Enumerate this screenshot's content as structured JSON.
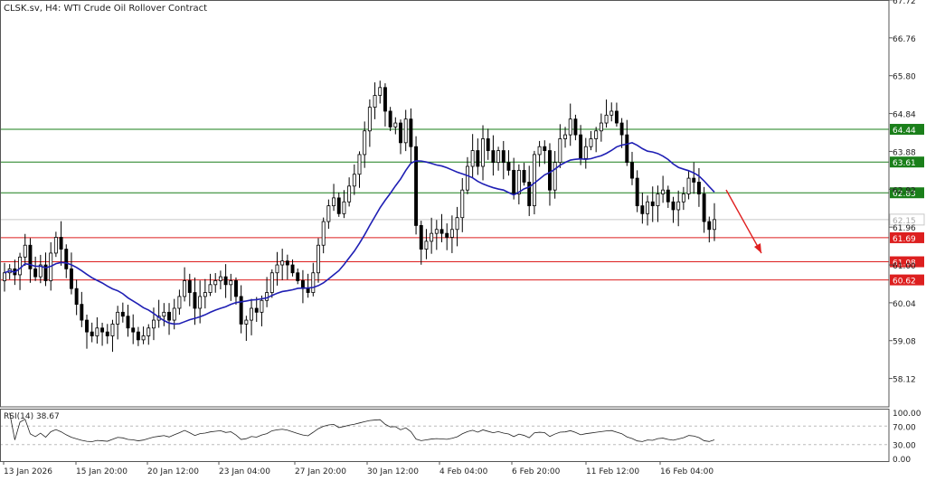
{
  "header": {
    "title": "CLSK.sv, H4:  WTI Crude Oil Rollover Contract"
  },
  "chart_data": {
    "type": "candlestick",
    "symbol": "CLSK.sv",
    "timeframe": "H4",
    "instrument": "WTI Crude Oil Rollover Contract",
    "ylim": [
      57.4,
      67.72
    ],
    "y_ticks": [
      "67.72",
      "66.76",
      "65.80",
      "64.84",
      "63.88",
      "62.92",
      "61.96",
      "61.00",
      "60.04",
      "59.08",
      "58.12"
    ],
    "x_ticks": [
      "13 Jan 2026",
      "15 Jan 20:00",
      "20 Jan 12:00",
      "23 Jan 04:00",
      "27 Jan 20:00",
      "30 Jan 12:00",
      "4 Feb 04:00",
      "6 Feb 20:00",
      "11 Feb 12:00",
      "16 Feb 04:00"
    ],
    "horizontal_levels": [
      {
        "label": "64.44",
        "value": 64.44,
        "color": "#1a7f1a"
      },
      {
        "label": "63.61",
        "value": 63.61,
        "color": "#1a7f1a"
      },
      {
        "label": "62.83",
        "value": 62.83,
        "color": "#1a7f1a"
      },
      {
        "label": "61.69",
        "value": 61.69,
        "color": "#dd1f1f"
      },
      {
        "label": "61.08",
        "value": 61.08,
        "color": "#dd1f1f"
      },
      {
        "label": "60.62",
        "value": 60.62,
        "color": "#dd1f1f"
      }
    ],
    "current_price": "62.15",
    "moving_average": {
      "color": "#1f1fb4"
    },
    "arrow": {
      "color": "#e02020",
      "direction": "down"
    },
    "close": [
      60.8,
      60.9,
      60.75,
      61.2,
      61.5,
      60.9,
      60.7,
      61.0,
      60.6,
      61.3,
      61.7,
      61.4,
      60.9,
      60.4,
      60.0,
      59.6,
      59.3,
      59.2,
      59.4,
      59.3,
      59.2,
      59.5,
      59.8,
      59.7,
      59.4,
      59.3,
      59.1,
      59.2,
      59.4,
      59.6,
      59.7,
      59.8,
      59.6,
      59.9,
      60.2,
      60.6,
      60.3,
      59.9,
      60.2,
      60.3,
      60.5,
      60.6,
      60.7,
      60.5,
      60.6,
      60.2,
      59.5,
      59.6,
      59.9,
      59.8,
      60.1,
      60.3,
      60.8,
      61.0,
      61.1,
      61.0,
      60.8,
      60.6,
      60.4,
      60.3,
      60.8,
      61.5,
      62.1,
      62.5,
      62.7,
      62.3,
      62.6,
      63.0,
      63.3,
      63.8,
      64.4,
      65.0,
      65.3,
      65.5,
      64.9,
      64.5,
      64.6,
      64.1,
      64.7,
      64.0,
      62.0,
      61.4,
      61.6,
      61.8,
      61.9,
      61.8,
      61.7,
      61.9,
      62.2,
      62.9,
      63.5,
      63.9,
      63.5,
      64.2,
      63.9,
      63.6,
      63.9,
      63.6,
      63.4,
      62.8,
      63.4,
      63.1,
      62.5,
      63.8,
      64.0,
      63.9,
      62.9,
      63.6,
      64.2,
      64.3,
      64.7,
      64.3,
      63.7,
      64.0,
      64.2,
      64.4,
      64.6,
      64.8,
      64.9,
      64.6,
      64.3,
      63.6,
      63.2,
      62.5,
      62.3,
      62.6,
      62.5,
      62.8,
      62.9,
      62.6,
      62.4,
      62.6,
      62.8,
      63.2,
      63.1,
      62.8,
      62.1,
      61.9,
      62.15
    ]
  }
}
